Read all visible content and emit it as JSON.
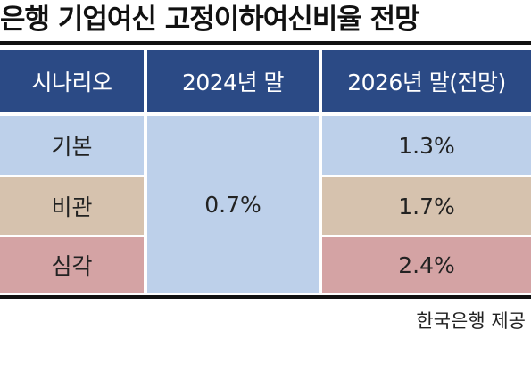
{
  "title": "은행 기업여신 고정이하여신비율 전망",
  "table": {
    "headers": [
      "시나리오",
      "2024년 말",
      "2026년 말(전망)"
    ],
    "rows": [
      {
        "scenario": "기본",
        "value_2026": "1.3%"
      },
      {
        "scenario": "비관",
        "value_2026": "1.7%"
      },
      {
        "scenario": "심각",
        "value_2026": "2.4%"
      }
    ],
    "value_2024": "0.7%"
  },
  "source": "한국은행 제공",
  "colors": {
    "header_bg": "#2b4a85",
    "row_base": "#bdd0ea",
    "row_pessimistic": "#d6c2ae",
    "row_severe": "#d4a3a4"
  }
}
